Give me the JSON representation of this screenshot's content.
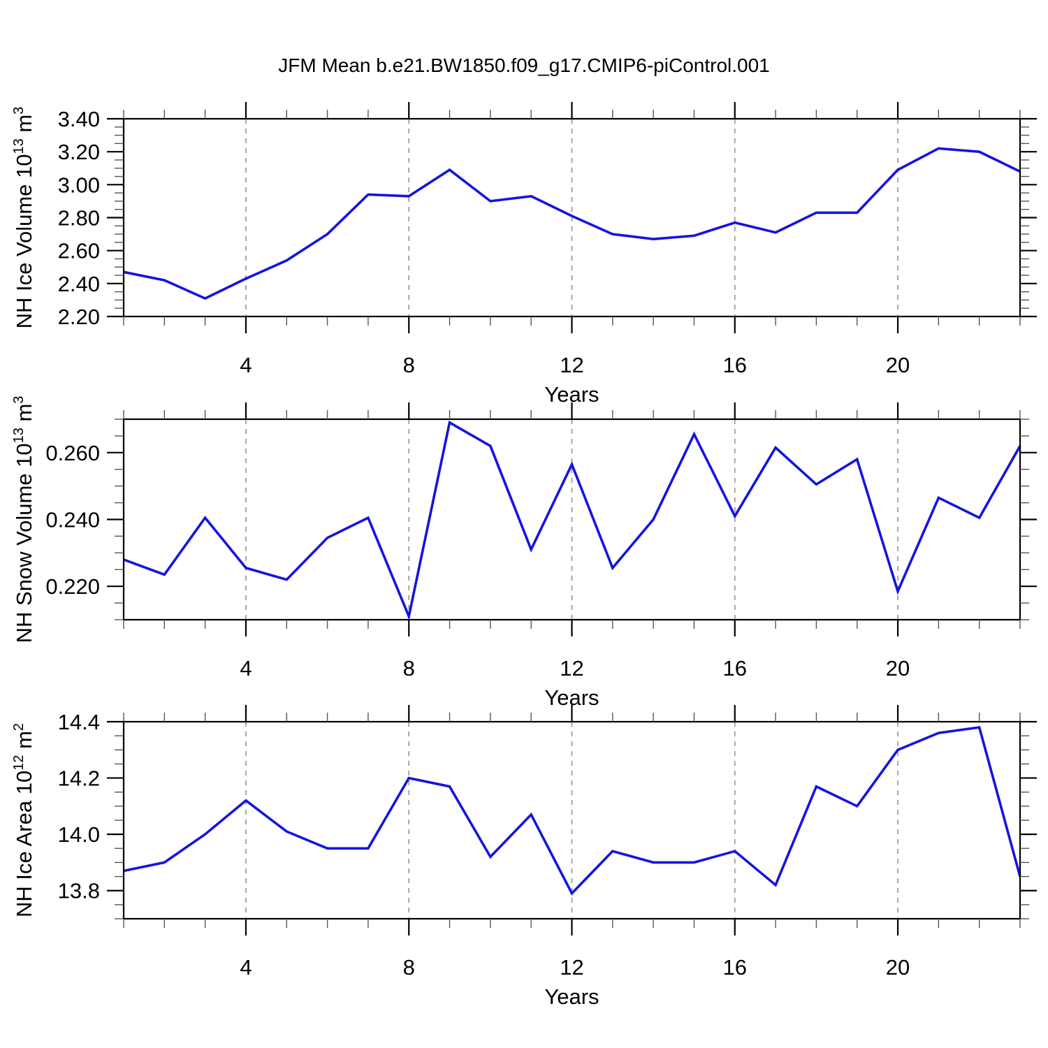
{
  "page": {
    "title": "JFM Mean b.e21.BW1850.f09_g17.CMIP6-piControl.001",
    "background": "#ffffff",
    "line_color": "#1414e0",
    "grid_color": "#999999",
    "axis_color": "#000000",
    "minor_tick_color": "#555555"
  },
  "chart_data": [
    {
      "type": "line",
      "panel": "top",
      "xlabel": "Years",
      "ylabel": "NH Ice Volume 10^13 m^3",
      "ylabel_segments": [
        {
          "text": "NH Ice Volume 10",
          "sup": false
        },
        {
          "text": "13",
          "sup": true
        },
        {
          "text": " m",
          "sup": false
        },
        {
          "text": "3",
          "sup": true
        }
      ],
      "xlim": [
        1,
        23
      ],
      "ylim": [
        2.2,
        3.4
      ],
      "x_major_ticks": [
        4,
        8,
        12,
        16,
        20
      ],
      "x_major_labels": [
        "4",
        "8",
        "12",
        "16",
        "20"
      ],
      "x_minor_step": 1,
      "y_major_ticks": [
        2.2,
        2.4,
        2.6,
        2.8,
        3.0,
        3.2,
        3.4
      ],
      "y_major_labels": [
        "2.20",
        "2.40",
        "2.60",
        "2.80",
        "3.00",
        "3.20",
        "3.40"
      ],
      "y_minor_step": 0.05,
      "gridlines_x": [
        4,
        8,
        12,
        16,
        20
      ],
      "grid_on": true,
      "legend": "none",
      "x": [
        1,
        2,
        3,
        4,
        5,
        6,
        7,
        8,
        9,
        10,
        11,
        12,
        13,
        14,
        15,
        16,
        17,
        18,
        19,
        20,
        21,
        22,
        23
      ],
      "series": [
        {
          "name": "NH Ice Volume",
          "values": [
            2.47,
            2.42,
            2.31,
            2.43,
            2.54,
            2.7,
            2.94,
            2.93,
            3.09,
            2.9,
            2.93,
            2.81,
            2.7,
            2.67,
            2.69,
            2.77,
            2.71,
            2.83,
            2.83,
            3.09,
            3.22,
            3.2,
            3.08
          ]
        }
      ]
    },
    {
      "type": "line",
      "panel": "middle",
      "xlabel": "Years",
      "ylabel": "NH Snow Volume 10^13 m^3",
      "ylabel_segments": [
        {
          "text": "NH Snow Volume 10",
          "sup": false
        },
        {
          "text": "13",
          "sup": true
        },
        {
          "text": " m",
          "sup": false
        },
        {
          "text": "3",
          "sup": true
        }
      ],
      "xlim": [
        1,
        23
      ],
      "ylim": [
        0.21,
        0.27
      ],
      "x_major_ticks": [
        4,
        8,
        12,
        16,
        20
      ],
      "x_major_labels": [
        "4",
        "8",
        "12",
        "16",
        "20"
      ],
      "x_minor_step": 1,
      "y_major_ticks": [
        0.22,
        0.24,
        0.26
      ],
      "y_major_labels": [
        "0.220",
        "0.240",
        "0.260"
      ],
      "y_minor_step": 0.005,
      "gridlines_x": [
        4,
        8,
        12,
        16,
        20
      ],
      "grid_on": true,
      "legend": "none",
      "x": [
        1,
        2,
        3,
        4,
        5,
        6,
        7,
        8,
        9,
        10,
        11,
        12,
        13,
        14,
        15,
        16,
        17,
        18,
        19,
        20,
        21,
        22,
        23
      ],
      "series": [
        {
          "name": "NH Snow Volume",
          "values": [
            0.228,
            0.2235,
            0.2405,
            0.2255,
            0.222,
            0.2345,
            0.2405,
            0.211,
            0.269,
            0.262,
            0.231,
            0.2565,
            0.2255,
            0.24,
            0.2655,
            0.241,
            0.2615,
            0.2505,
            0.258,
            0.2185,
            0.2465,
            0.2405,
            0.262
          ]
        }
      ]
    },
    {
      "type": "line",
      "panel": "bottom",
      "xlabel": "Years",
      "ylabel": "NH Ice Area 10^12 m^2",
      "ylabel_segments": [
        {
          "text": "NH Ice Area 10",
          "sup": false
        },
        {
          "text": "12",
          "sup": true
        },
        {
          "text": " m",
          "sup": false
        },
        {
          "text": "2",
          "sup": true
        }
      ],
      "xlim": [
        1,
        23
      ],
      "ylim": [
        13.7,
        14.4
      ],
      "x_major_ticks": [
        4,
        8,
        12,
        16,
        20
      ],
      "x_major_labels": [
        "4",
        "8",
        "12",
        "16",
        "20"
      ],
      "x_minor_step": 1,
      "y_major_ticks": [
        13.8,
        14.0,
        14.2,
        14.4
      ],
      "y_major_labels": [
        "13.8",
        "14.0",
        "14.2",
        "14.4"
      ],
      "y_minor_step": 0.05,
      "gridlines_x": [
        4,
        8,
        12,
        16,
        20
      ],
      "grid_on": true,
      "legend": "none",
      "x": [
        1,
        2,
        3,
        4,
        5,
        6,
        7,
        8,
        9,
        10,
        11,
        12,
        13,
        14,
        15,
        16,
        17,
        18,
        19,
        20,
        21,
        22,
        23
      ],
      "series": [
        {
          "name": "NH Ice Area",
          "values": [
            13.87,
            13.9,
            14.0,
            14.12,
            14.01,
            13.95,
            13.95,
            14.2,
            14.17,
            13.92,
            14.07,
            13.79,
            13.94,
            13.9,
            13.9,
            13.94,
            13.82,
            14.17,
            14.1,
            14.3,
            14.36,
            14.38,
            13.85
          ]
        }
      ]
    }
  ]
}
